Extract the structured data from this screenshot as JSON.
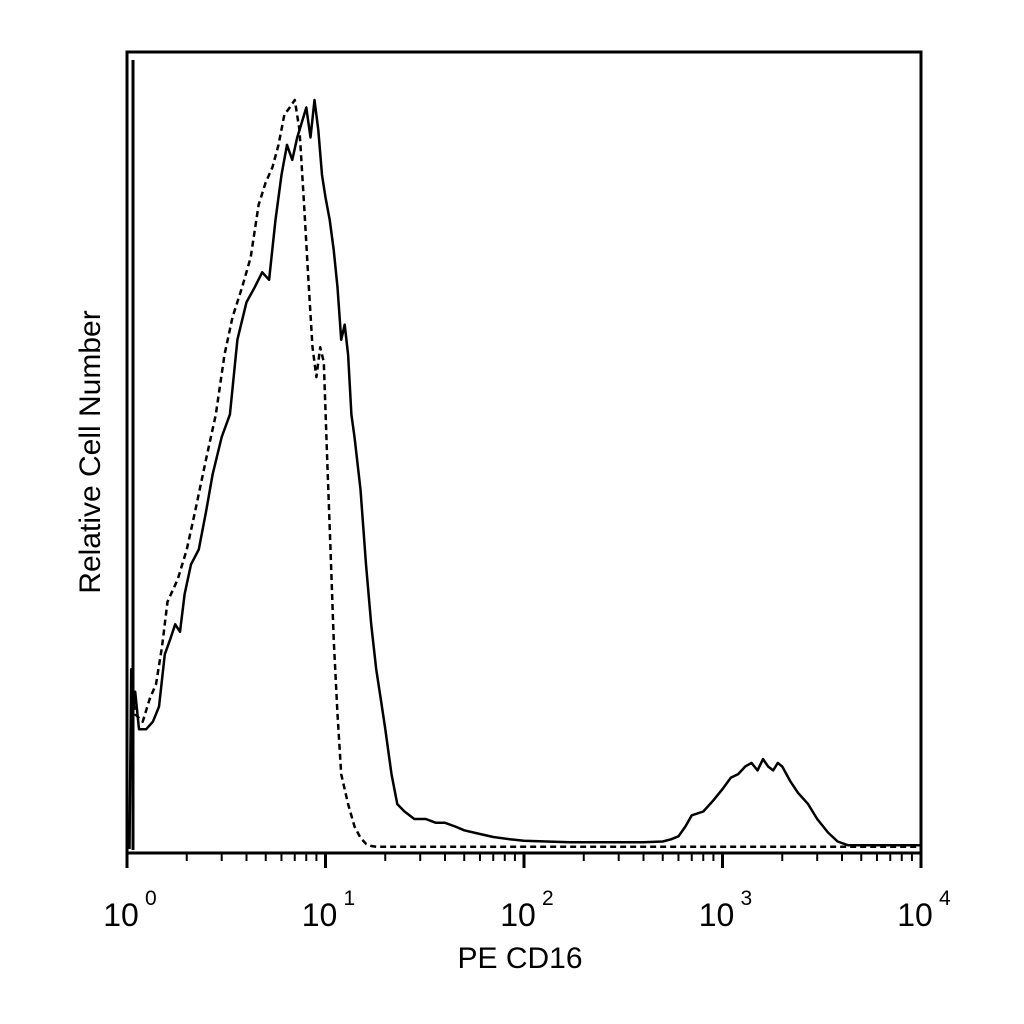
{
  "chart_data": {
    "type": "line",
    "title": "",
    "xlabel": "PE CD16",
    "ylabel": "Relative Cell Number",
    "xscale": "log",
    "xlim": [
      1,
      10000
    ],
    "ylim": [
      0,
      100
    ],
    "grid": false,
    "legend": "none",
    "x_tick_labels": [
      {
        "base": "10",
        "exp": "0",
        "value": 1
      },
      {
        "base": "10",
        "exp": "1",
        "value": 10
      },
      {
        "base": "10",
        "exp": "2",
        "value": 100
      },
      {
        "base": "10",
        "exp": "3",
        "value": 1000
      },
      {
        "base": "10",
        "exp": "4",
        "value": 10000
      }
    ],
    "series": [
      {
        "style": "solid",
        "color": "#000000",
        "x": [
          1.03,
          1.05,
          1.07,
          1.1,
          1.15,
          1.25,
          1.35,
          1.45,
          1.55,
          1.65,
          1.75,
          1.85,
          1.95,
          2.1,
          2.3,
          2.5,
          2.7,
          3.0,
          3.3,
          3.6,
          4.0,
          4.4,
          4.8,
          5.2,
          5.6,
          6.0,
          6.4,
          6.8,
          7.2,
          7.6,
          8.0,
          8.4,
          8.8,
          9.2,
          9.6,
          10.0,
          10.5,
          11.0,
          11.5,
          12.0,
          12.5,
          13.0,
          13.5,
          14.0,
          15.0,
          16.0,
          17.0,
          18.0,
          19.0,
          20.0,
          21.5,
          23.0,
          25.0,
          28.0,
          32.0,
          36.0,
          40.0,
          45.0,
          50.0,
          60.0,
          70.0,
          85.0,
          100.0,
          130.0,
          170.0,
          220.0,
          300.0,
          400.0,
          500.0,
          550.0,
          600.0,
          650.0,
          700.0,
          800.0,
          900.0,
          1000.0,
          1100.0,
          1200.0,
          1300.0,
          1400.0,
          1500.0,
          1600.0,
          1700.0,
          1800.0,
          1900.0,
          2000.0,
          2200.0,
          2400.0,
          2700.0,
          3000.0,
          3400.0,
          3800.0,
          4300.0,
          5000.0,
          6000.0,
          8000.0,
          10000.0
        ],
        "y": [
          0,
          24,
          18,
          21,
          16,
          16,
          17,
          19,
          26,
          28,
          30,
          29,
          34,
          38,
          40,
          45,
          50,
          55,
          58,
          68,
          73,
          75,
          77,
          76,
          84,
          90,
          94,
          92,
          95,
          97,
          99,
          95,
          100,
          96,
          90,
          87,
          84,
          80,
          75,
          68,
          70,
          66,
          58,
          55,
          48,
          38,
          30,
          24,
          20,
          16,
          10,
          6,
          5,
          4,
          4,
          3.5,
          3.5,
          3,
          2.5,
          2,
          1.6,
          1.3,
          1.1,
          1,
          0.9,
          0.9,
          0.9,
          0.9,
          1,
          1.3,
          1.7,
          3,
          4.5,
          5,
          6.5,
          8,
          9.5,
          10,
          11,
          11.5,
          10.5,
          12,
          11,
          10.5,
          11.5,
          11,
          9,
          7.5,
          6,
          4,
          2.2,
          1,
          0.5,
          0.5,
          0.5,
          0.5,
          0.5
        ]
      },
      {
        "style": "dashed",
        "color": "#000000",
        "x": [
          1.05,
          1.1,
          1.2,
          1.3,
          1.4,
          1.5,
          1.6,
          1.8,
          2.0,
          2.2,
          2.5,
          2.8,
          3.1,
          3.4,
          3.8,
          4.2,
          4.6,
          5.0,
          5.4,
          5.8,
          6.2,
          6.6,
          7.0,
          7.4,
          7.8,
          8.2,
          8.6,
          9.0,
          9.4,
          9.8,
          10.2,
          10.6,
          11.0,
          11.5,
          12.0,
          13.0,
          14.0,
          15.0,
          16.0,
          17.0,
          18.0,
          19.0,
          20.0,
          22.0,
          25.0,
          30.0,
          40.0,
          60.0,
          100.0,
          300.0,
          1000.0,
          3000.0,
          10000.0
        ],
        "y": [
          22,
          18,
          17,
          20,
          22,
          27,
          33,
          36,
          40,
          45,
          52,
          58,
          66,
          71,
          75,
          79,
          86,
          89,
          91,
          94,
          98,
          99,
          100,
          96,
          86,
          76,
          67,
          63,
          67,
          65,
          52,
          40,
          28,
          18,
          10,
          6,
          3,
          1.5,
          0.7,
          0.4,
          0.3,
          0.3,
          0.3,
          0.3,
          0.3,
          0.3,
          0.3,
          0.3,
          0.3,
          0.3,
          0.3,
          0.3,
          0.3
        ]
      }
    ]
  }
}
